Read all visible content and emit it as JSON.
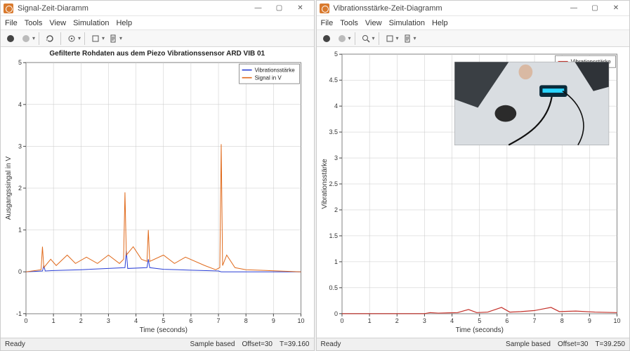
{
  "left": {
    "window_title": "Signal-Zeit-Diaramm",
    "menus": [
      "File",
      "Tools",
      "View",
      "Simulation",
      "Help"
    ],
    "chart": {
      "type": "line",
      "title": "Gefilterte Rohdaten aus dem Piezo Vibrationssensor ARD VIB 01",
      "xlabel": "Time (seconds)",
      "ylabel": "Ausgangssingal in V",
      "xlim": [
        0,
        10
      ],
      "xtick_step": 1,
      "ylim": [
        -1,
        5
      ],
      "ytick_step": 1,
      "background_color": "#ffffff",
      "grid_color": "#c8c8c8",
      "legend": {
        "position": "top-right",
        "entries": [
          {
            "label": "Vibrationsstärke",
            "color": "#2a3fd6",
            "style": "solid"
          },
          {
            "label": "Signal in V",
            "color": "#e06a1c",
            "style": "solid"
          }
        ]
      },
      "series": [
        {
          "name": "Vibrationsstärke",
          "color": "#2a3fd6",
          "width": 1,
          "points": [
            [
              0,
              0
            ],
            [
              0.6,
              0.02
            ],
            [
              0.65,
              0.15
            ],
            [
              0.7,
              0.02
            ],
            [
              1,
              0.03
            ],
            [
              2,
              0.05
            ],
            [
              3,
              0.08
            ],
            [
              3.6,
              0.1
            ],
            [
              3.65,
              0.5
            ],
            [
              3.7,
              0.08
            ],
            [
              4.4,
              0.1
            ],
            [
              4.45,
              0.3
            ],
            [
              4.5,
              0.1
            ],
            [
              5,
              0.06
            ],
            [
              6,
              0.04
            ],
            [
              7,
              0.02
            ],
            [
              7.1,
              0
            ],
            [
              10,
              0
            ]
          ]
        },
        {
          "name": "Signal in V",
          "color": "#e06a1c",
          "width": 1,
          "points": [
            [
              0,
              0
            ],
            [
              0.55,
              0.05
            ],
            [
              0.6,
              0.6
            ],
            [
              0.65,
              0.1
            ],
            [
              0.9,
              0.3
            ],
            [
              1.1,
              0.15
            ],
            [
              1.5,
              0.4
            ],
            [
              1.8,
              0.2
            ],
            [
              2.2,
              0.35
            ],
            [
              2.6,
              0.2
            ],
            [
              3.0,
              0.4
            ],
            [
              3.4,
              0.2
            ],
            [
              3.55,
              0.3
            ],
            [
              3.6,
              1.9
            ],
            [
              3.65,
              0.4
            ],
            [
              3.9,
              0.6
            ],
            [
              4.2,
              0.3
            ],
            [
              4.4,
              0.25
            ],
            [
              4.45,
              1.0
            ],
            [
              4.5,
              0.25
            ],
            [
              5.0,
              0.4
            ],
            [
              5.4,
              0.2
            ],
            [
              5.8,
              0.35
            ],
            [
              6.5,
              0.15
            ],
            [
              6.9,
              0.05
            ],
            [
              7.05,
              0.1
            ],
            [
              7.1,
              3.05
            ],
            [
              7.15,
              0.15
            ],
            [
              7.3,
              0.4
            ],
            [
              7.6,
              0.1
            ],
            [
              8.0,
              0.05
            ],
            [
              10,
              0
            ]
          ]
        }
      ]
    },
    "status": {
      "ready": "Ready",
      "mode": "Sample based",
      "offset": "Offset=30",
      "time": "T=39.160"
    }
  },
  "right": {
    "window_title": "Vibrationsstärke-Zeit-Diagramm",
    "menus": [
      "File",
      "Tools",
      "View",
      "Simulation",
      "Help"
    ],
    "chart": {
      "type": "line",
      "title": "",
      "xlabel": "Time (seconds)",
      "ylabel": "Vibrationsstärke",
      "xlim": [
        0,
        10
      ],
      "xtick_step": 1,
      "ylim": [
        0,
        5
      ],
      "ytick_step": 0.5,
      "background_color": "#ffffff",
      "grid_color": "#c8c8c8",
      "legend": {
        "position": "top-right",
        "entries": [
          {
            "label": "Vibrationsstärke",
            "color": "#c4322b",
            "style": "solid"
          }
        ]
      },
      "series": [
        {
          "name": "Vibrationsstärke",
          "color": "#c4322b",
          "width": 1.2,
          "points": [
            [
              0,
              0
            ],
            [
              3.0,
              0
            ],
            [
              3.2,
              0.02
            ],
            [
              3.5,
              0.01
            ],
            [
              4.2,
              0.02
            ],
            [
              4.6,
              0.08
            ],
            [
              4.9,
              0.02
            ],
            [
              5.3,
              0.03
            ],
            [
              5.8,
              0.12
            ],
            [
              6.1,
              0.03
            ],
            [
              6.5,
              0.04
            ],
            [
              7.0,
              0.06
            ],
            [
              7.6,
              0.12
            ],
            [
              7.9,
              0.04
            ],
            [
              8.5,
              0.05
            ],
            [
              9.2,
              0.03
            ],
            [
              10,
              0.02
            ]
          ]
        }
      ],
      "photo_overlay": {
        "left_pct": 41,
        "top_pct": 3,
        "width_pct": 56,
        "height_pct": 32
      }
    },
    "status": {
      "ready": "Ready",
      "mode": "Sample based",
      "offset": "Offset=30",
      "time": "T=39.250"
    }
  },
  "toolbar_icons": [
    "circle-dark",
    "circle-light",
    "divider",
    "cycle",
    "divider",
    "target",
    "divider",
    "box",
    "dropdown",
    "script"
  ],
  "winbtn_labels": {
    "min": "—",
    "max": "▢",
    "close": "✕"
  }
}
